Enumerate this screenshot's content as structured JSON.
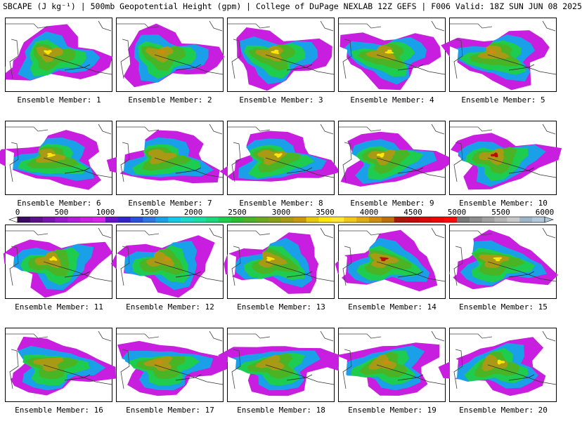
{
  "title": "SBCAPE (J kg⁻¹) | 500mb Geopotential Height (gpm) | College of DuPage NEXLAB 12Z GEFS | F006 Valid: 18Z SUN JUN 08 2025",
  "member_label_prefix": "Ensemble Member: ",
  "members": [
    {
      "number": "1",
      "peak": 3500
    },
    {
      "number": "2",
      "peak": 4000
    },
    {
      "number": "3",
      "peak": 3500
    },
    {
      "number": "4",
      "peak": 3500
    },
    {
      "number": "5",
      "peak": 4000
    },
    {
      "number": "6",
      "peak": 3500
    },
    {
      "number": "7",
      "peak": 3000
    },
    {
      "number": "8",
      "peak": 3500
    },
    {
      "number": "9",
      "peak": 3500
    },
    {
      "number": "10",
      "peak": 4500
    },
    {
      "number": "11",
      "peak": 3500
    },
    {
      "number": "12",
      "peak": 4000
    },
    {
      "number": "13",
      "peak": 3500
    },
    {
      "number": "14",
      "peak": 4500
    },
    {
      "number": "15",
      "peak": 3500
    },
    {
      "number": "16",
      "peak": 3000
    },
    {
      "number": "17",
      "peak": 4000
    },
    {
      "number": "18",
      "peak": 3000
    },
    {
      "number": "19",
      "peak": 4000
    },
    {
      "number": "20",
      "peak": 3500
    }
  ],
  "colorbar": {
    "min": 0,
    "max": 6000,
    "tick_labels": [
      "0",
      "500",
      "1000",
      "1500",
      "2000",
      "2500",
      "3000",
      "3500",
      "4000",
      "4500",
      "5000",
      "5500",
      "6000"
    ],
    "colors": [
      "#3a0a5e",
      "#5a0f8c",
      "#7a12b0",
      "#9a16c8",
      "#b51ad8",
      "#c81ee0",
      "#d822e8",
      "#6a14c8",
      "#3026c8",
      "#2a50d8",
      "#2a78e0",
      "#1aa0e8",
      "#14c8e8",
      "#1ad8c8",
      "#1adca0",
      "#1ad87a",
      "#1ecc50",
      "#28c02e",
      "#4ab424",
      "#6aa81e",
      "#8aa018",
      "#a89a14",
      "#c89810",
      "#e8c80c",
      "#ffe60a",
      "#ffe632",
      "#f0c81a",
      "#e0aa14",
      "#d08c10",
      "#c06e0c",
      "#a81808",
      "#c00a0a",
      "#d80808",
      "#ee0606",
      "#ff0808",
      "#787878",
      "#8c8c8c",
      "#a0a0a0",
      "#b4b4b4",
      "#c8c8c8",
      "#9cb4c8",
      "#b0c8dc"
    ]
  }
}
